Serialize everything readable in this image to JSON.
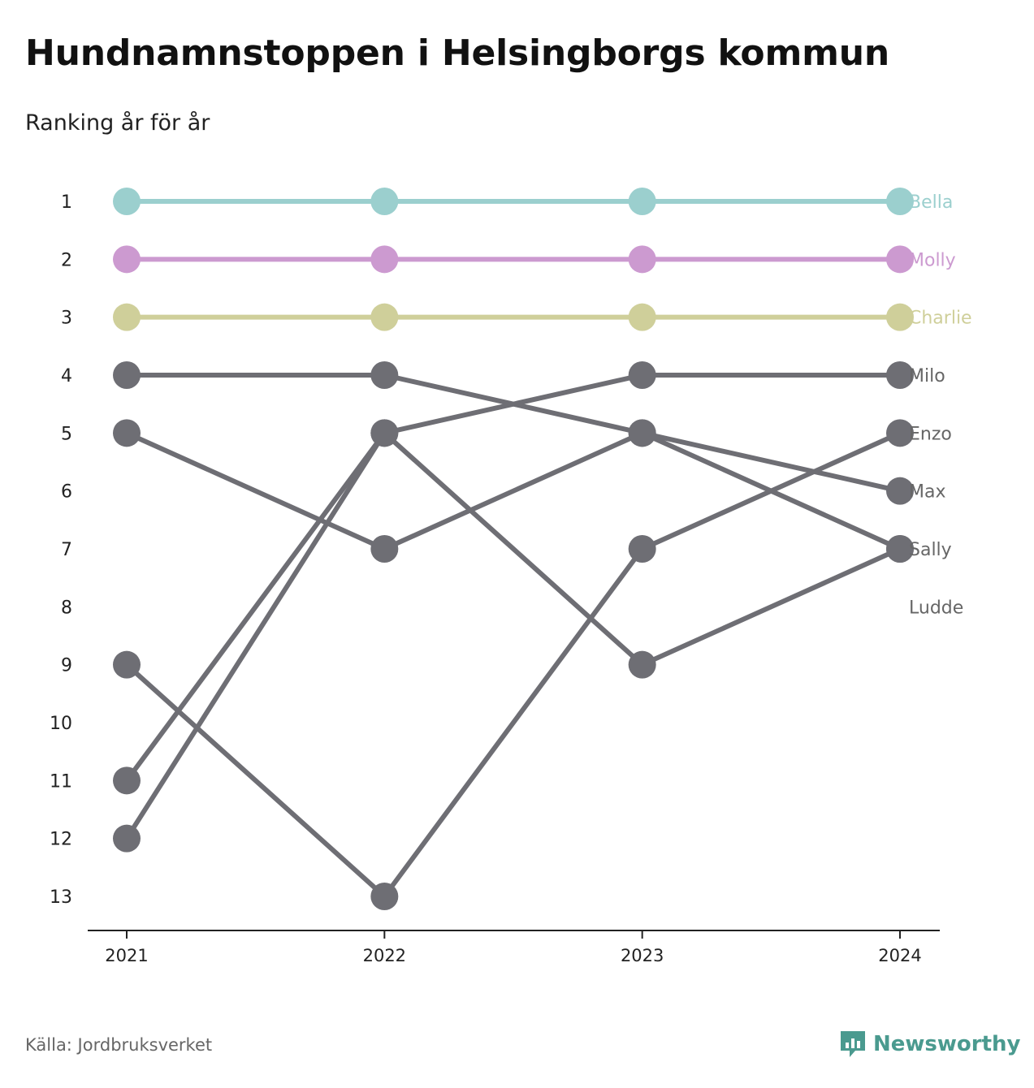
{
  "title": "Hundnamnstoppen i Helsingborgs kommun",
  "subtitle": "Ranking år för år",
  "source": "Källa: Jordbruksverket",
  "brand": {
    "name": "Newsworthy",
    "icon": "newsworthy-logo-icon",
    "color": "#4a9a8f"
  },
  "colors": {
    "Bella": "#9bcfce",
    "Molly": "#cc9ad0",
    "Charlie": "#cfcf9a",
    "default": "#6e6e74",
    "label_default": "#666666"
  },
  "chart_data": {
    "type": "line",
    "x": [
      "2021",
      "2022",
      "2023",
      "2024"
    ],
    "yticks": [
      "1",
      "2",
      "3",
      "4",
      "5",
      "6",
      "7",
      "8",
      "9",
      "10",
      "11",
      "12",
      "13"
    ],
    "ylim": [
      1,
      13
    ],
    "y_inverted": true,
    "grid": false,
    "series": [
      {
        "name": "Bella",
        "values": [
          1,
          1,
          1,
          1
        ]
      },
      {
        "name": "Molly",
        "values": [
          2,
          2,
          2,
          2
        ]
      },
      {
        "name": "Charlie",
        "values": [
          3,
          3,
          3,
          3
        ]
      },
      {
        "name": "Milo",
        "values": [
          4,
          4,
          5,
          6
        ]
      },
      {
        "name": "Enzo",
        "values": [
          9,
          13,
          7,
          5
        ]
      },
      {
        "name": "Max",
        "values": [
          11,
          5,
          4,
          4
        ]
      },
      {
        "name": "Sally",
        "values": [
          5,
          7,
          5,
          7
        ]
      },
      {
        "name": "Ludde",
        "values": [
          12,
          5,
          9,
          7
        ]
      }
    ],
    "end_labels": [
      {
        "text": "Bella",
        "rank": 1
      },
      {
        "text": "Molly",
        "rank": 2
      },
      {
        "text": "Charlie",
        "rank": 3
      },
      {
        "text": "Milo",
        "rank": 4
      },
      {
        "text": "Enzo",
        "rank": 5
      },
      {
        "text": "Max",
        "rank": 6
      },
      {
        "text": "Sally",
        "rank": 7
      },
      {
        "text": "Ludde",
        "rank": 8
      }
    ]
  }
}
